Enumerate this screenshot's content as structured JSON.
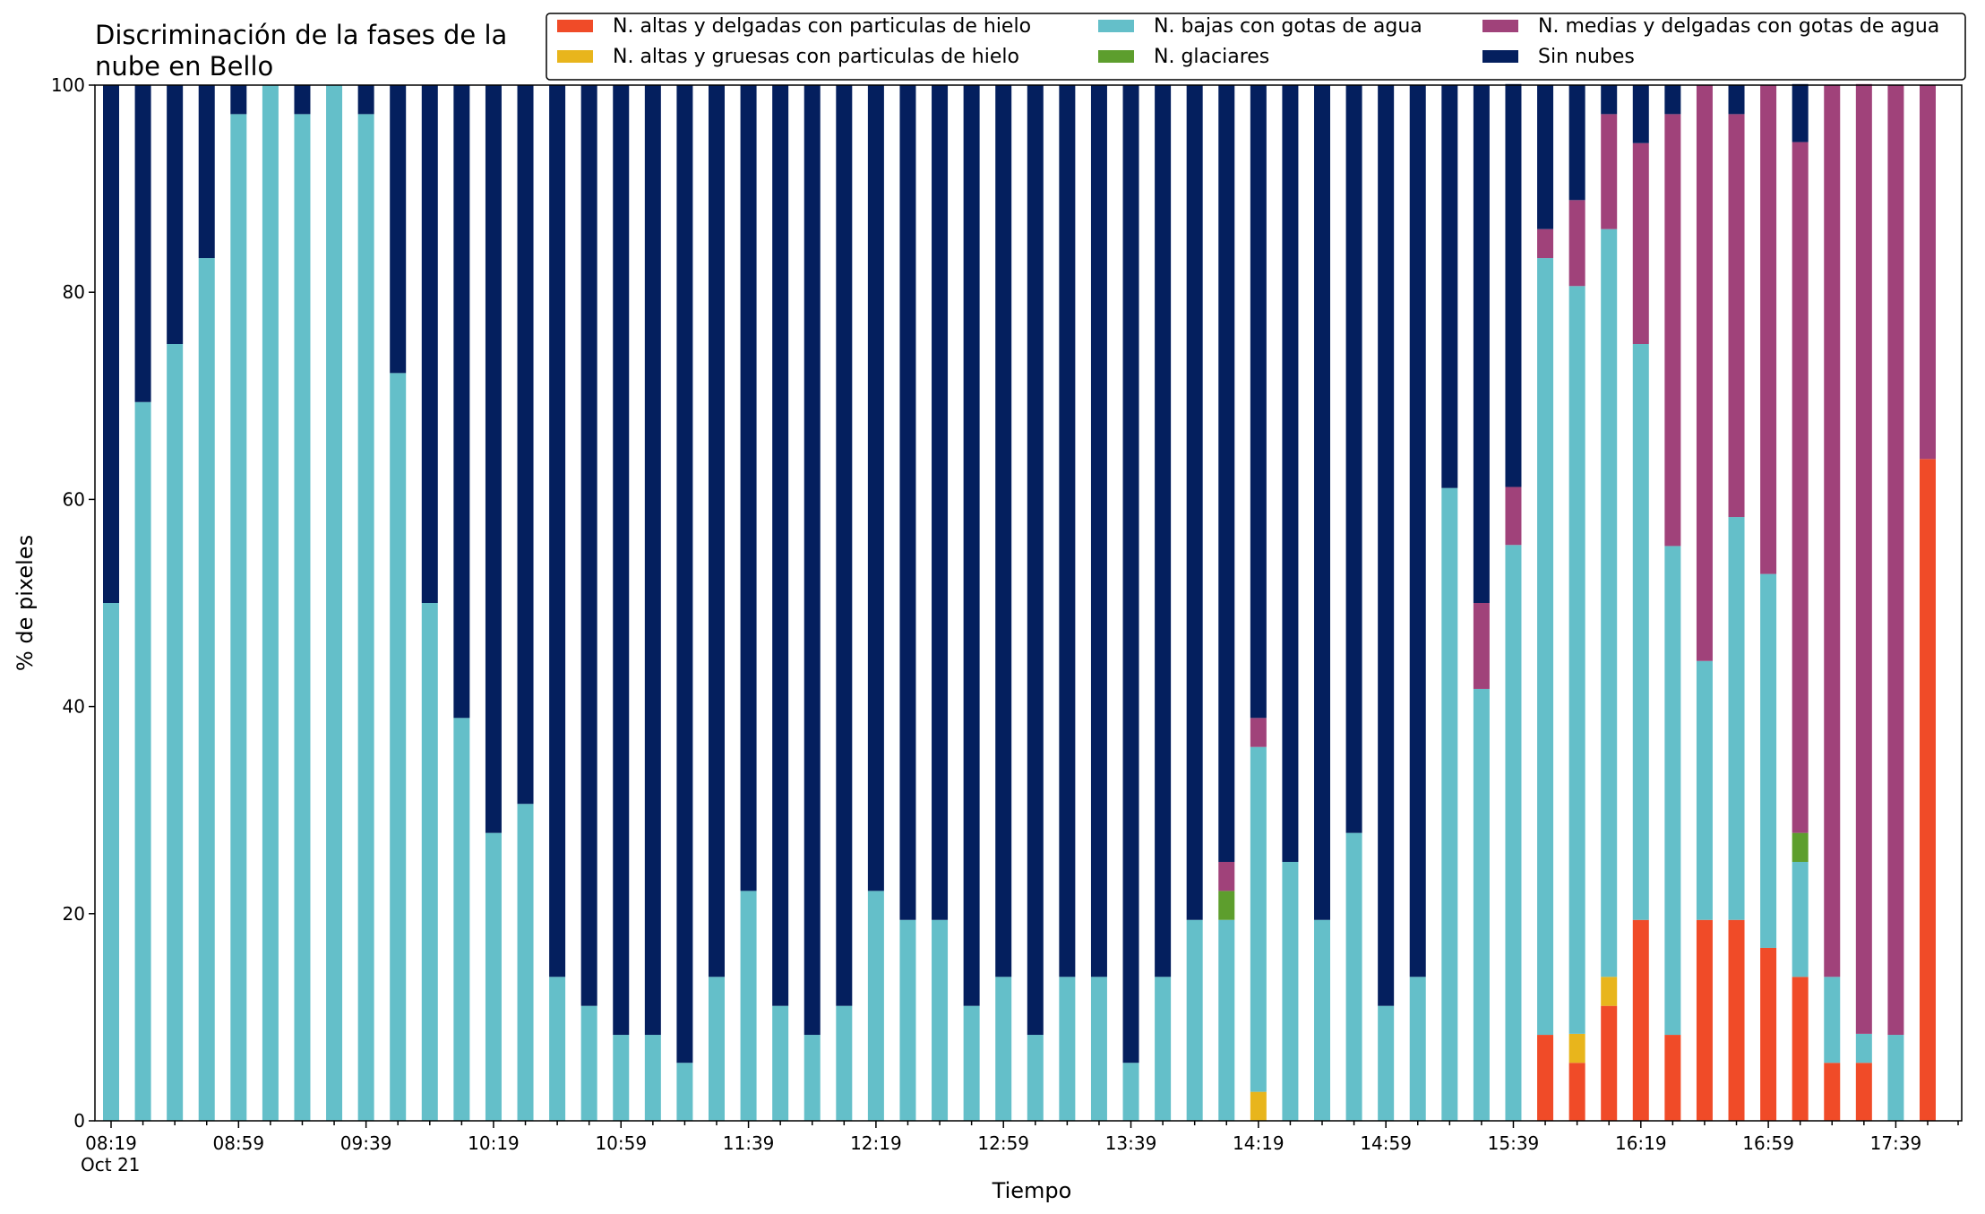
{
  "chart_data": {
    "type": "bar",
    "stacked": true,
    "title_lines": [
      "Discriminación de la fases de la",
      "nube en Bello"
    ],
    "xlabel": "Tiempo",
    "ylabel": "% de pixeles",
    "ylim": [
      0,
      100
    ],
    "yticks": [
      0,
      20,
      40,
      60,
      80,
      100
    ],
    "grid": false,
    "legend_position": "top-right",
    "categories": [
      "08:19",
      "08:29",
      "08:39",
      "08:49",
      "08:59",
      "09:09",
      "09:19",
      "09:29",
      "09:39",
      "09:49",
      "09:59",
      "10:09",
      "10:19",
      "10:29",
      "10:39",
      "10:49",
      "10:59",
      "11:09",
      "11:19",
      "11:29",
      "11:39",
      "11:49",
      "11:59",
      "12:09",
      "12:19",
      "12:29",
      "12:39",
      "12:49",
      "12:59",
      "13:09",
      "13:19",
      "13:29",
      "13:39",
      "13:49",
      "13:59",
      "14:09",
      "14:19",
      "14:29",
      "14:39",
      "14:49",
      "14:59",
      "15:09",
      "15:19",
      "15:29",
      "15:39",
      "15:49",
      "15:59",
      "16:09",
      "16:19",
      "16:29",
      "16:39",
      "16:49",
      "16:59",
      "17:09",
      "17:19",
      "17:29",
      "17:39",
      "17:49"
    ],
    "xtick_labels": [
      {
        "index": 0,
        "text": "08:19",
        "sub": "Oct 21"
      },
      {
        "index": 4,
        "text": "08:59"
      },
      {
        "index": 8,
        "text": "09:39"
      },
      {
        "index": 12,
        "text": "10:19"
      },
      {
        "index": 16,
        "text": "10:59"
      },
      {
        "index": 20,
        "text": "11:39"
      },
      {
        "index": 24,
        "text": "12:19"
      },
      {
        "index": 28,
        "text": "12:59"
      },
      {
        "index": 32,
        "text": "13:39"
      },
      {
        "index": 36,
        "text": "14:19"
      },
      {
        "index": 40,
        "text": "14:59"
      },
      {
        "index": 44,
        "text": "15:39"
      },
      {
        "index": 48,
        "text": "16:19"
      },
      {
        "index": 52,
        "text": "16:59"
      },
      {
        "index": 56,
        "text": "17:39"
      }
    ],
    "series": [
      {
        "name": "N. altas y delgadas con particulas de hielo",
        "color": "#f04b28",
        "values": [
          0,
          0,
          0,
          0,
          0,
          0,
          0,
          0,
          0,
          0,
          0,
          0,
          0,
          0,
          0,
          0,
          0,
          0,
          0,
          0,
          0,
          0,
          0,
          0,
          0,
          0,
          0,
          0,
          0,
          0,
          0,
          0,
          0,
          0,
          0,
          0,
          0,
          0,
          0,
          0,
          0,
          0,
          0,
          0,
          0,
          8.3,
          5.6,
          11.1,
          19.4,
          8.3,
          19.4,
          19.4,
          16.7,
          13.9,
          5.6,
          5.6,
          0,
          63.9
        ]
      },
      {
        "name": "N. altas y gruesas con particulas de hielo",
        "color": "#e8b51c",
        "values": [
          0,
          0,
          0,
          0,
          0,
          0,
          0,
          0,
          0,
          0,
          0,
          0,
          0,
          0,
          0,
          0,
          0,
          0,
          0,
          0,
          0,
          0,
          0,
          0,
          0,
          0,
          0,
          0,
          0,
          0,
          0,
          0,
          0,
          0,
          0,
          0,
          2.8,
          0,
          0,
          0,
          0,
          0,
          0,
          0,
          0,
          0,
          2.8,
          2.8,
          0,
          0,
          0,
          0,
          0,
          0,
          0,
          0,
          0,
          0
        ]
      },
      {
        "name": "N. bajas con gotas de agua",
        "color": "#64bfc9",
        "values": [
          50,
          69.4,
          75,
          83.3,
          97.2,
          100,
          97.2,
          100,
          97.2,
          72.2,
          50,
          38.9,
          27.8,
          30.6,
          13.9,
          11.1,
          8.3,
          8.3,
          5.6,
          13.9,
          22.2,
          11.1,
          8.3,
          11.1,
          22.2,
          19.4,
          19.4,
          11.1,
          13.9,
          8.3,
          13.9,
          13.9,
          5.6,
          13.9,
          19.4,
          19.4,
          33.3,
          25,
          19.4,
          27.8,
          11.1,
          13.9,
          61.1,
          41.7,
          55.6,
          75,
          72.2,
          72.2,
          55.6,
          47.2,
          25,
          38.9,
          36.1,
          11.1,
          8.3,
          2.8,
          8.3,
          0
        ]
      },
      {
        "name": "N. glaciares",
        "color": "#5d9e2d",
        "values": [
          0,
          0,
          0,
          0,
          0,
          0,
          0,
          0,
          0,
          0,
          0,
          0,
          0,
          0,
          0,
          0,
          0,
          0,
          0,
          0,
          0,
          0,
          0,
          0,
          0,
          0,
          0,
          0,
          0,
          0,
          0,
          0,
          0,
          0,
          0,
          2.8,
          0,
          0,
          0,
          0,
          0,
          0,
          0,
          0,
          0,
          0,
          0,
          0,
          0,
          0,
          0,
          0,
          0,
          2.8,
          0,
          0,
          0,
          0
        ]
      },
      {
        "name": "N. medias y delgadas con gotas de agua",
        "color": "#a0427a",
        "values": [
          0,
          0,
          0,
          0,
          0,
          0,
          0,
          0,
          0,
          0,
          0,
          0,
          0,
          0,
          0,
          0,
          0,
          0,
          0,
          0,
          0,
          0,
          0,
          0,
          0,
          0,
          0,
          0,
          0,
          0,
          0,
          0,
          0,
          0,
          0,
          2.8,
          2.8,
          0,
          0,
          0,
          0,
          0,
          0,
          8.3,
          5.6,
          2.8,
          8.3,
          11.1,
          19.4,
          41.7,
          55.6,
          38.9,
          47.2,
          66.7,
          86.1,
          91.7,
          91.7,
          36.1
        ]
      },
      {
        "name": "Sin nubes",
        "color": "#041f5e",
        "values": [
          50,
          30.6,
          25,
          16.7,
          2.8,
          0,
          2.8,
          0,
          2.8,
          27.8,
          50,
          61.1,
          72.2,
          69.4,
          86.1,
          88.9,
          91.7,
          91.7,
          94.4,
          86.1,
          77.8,
          88.9,
          91.7,
          88.9,
          77.8,
          80.6,
          80.6,
          88.9,
          86.1,
          91.7,
          86.1,
          86.1,
          94.4,
          86.1,
          80.6,
          75,
          61.1,
          75,
          80.6,
          72.2,
          88.9,
          86.1,
          38.9,
          50,
          38.9,
          13.9,
          11.1,
          2.8,
          5.6,
          2.8,
          0,
          2.8,
          0,
          5.6,
          0,
          0,
          0,
          0
        ]
      }
    ]
  }
}
